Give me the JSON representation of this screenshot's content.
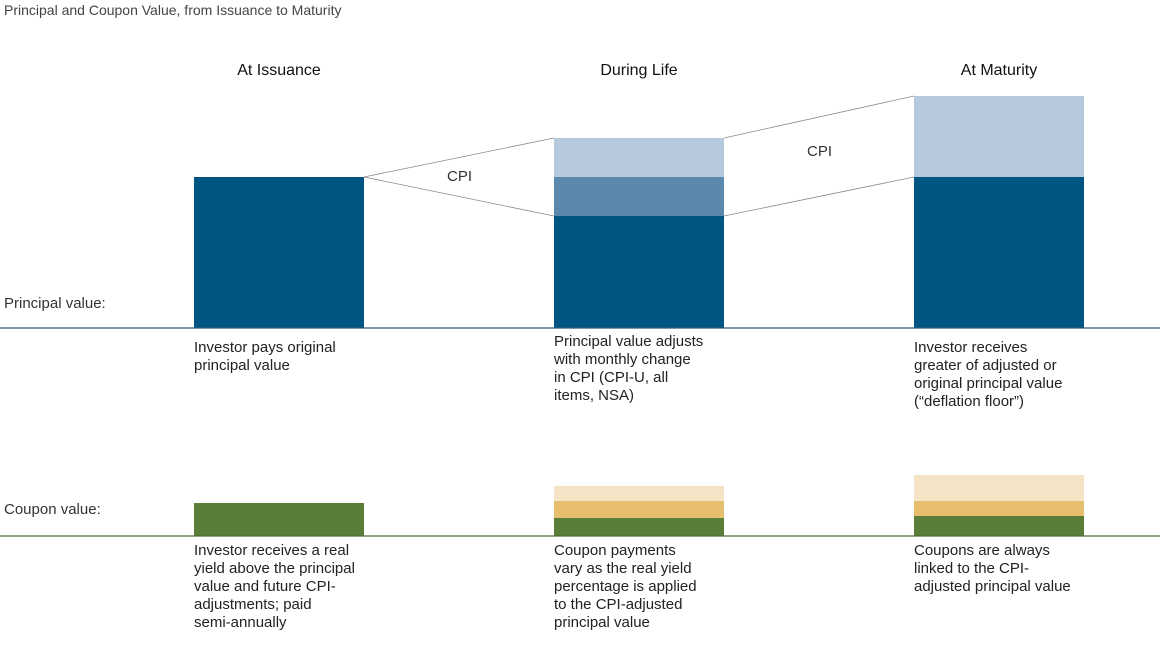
{
  "title": "Principal and Coupon Value, from Issuance to Maturity",
  "columns": [
    {
      "heading": "At Issuance",
      "principal_desc": "Investor pays original\nprincipal value",
      "coupon_desc": "Investor receives a real\nyield above the principal\nvalue and  future CPI-\nadjustments; paid\nsemi-annually"
    },
    {
      "heading": "During Life",
      "principal_desc": "Principal value adjusts\nwith monthly change\nin CPI (CPI-U, all\nitems, NSA)",
      "coupon_desc": "Coupon payments\nvary as the real yield\npercentage is applied\nto the CPI-adjusted\nprincipal value"
    },
    {
      "heading": "At Maturity",
      "principal_desc": "Investor receives\ngreater of adjusted or\noriginal principal value\n(“deflation floor”)",
      "coupon_desc": "Coupons are always\nlinked to the CPI-\nadjusted principal value"
    }
  ],
  "row_labels": {
    "principal": "Principal value:",
    "coupon": "Coupon value:"
  },
  "cpi_labels": [
    "CPI",
    "CPI"
  ],
  "colors": {
    "principal_dark": "#005582",
    "principal_mid": "#5b88ad",
    "principal_light": "#b7c9dd",
    "coupon_green": "#5a7d3a",
    "coupon_gold": "#e6be6e",
    "coupon_cream": "#f5e3c5",
    "baseline_blue": "#2a5a7a",
    "baseline_green": "#4f6f3a",
    "cpi_line": "#8a8a8a"
  }
}
